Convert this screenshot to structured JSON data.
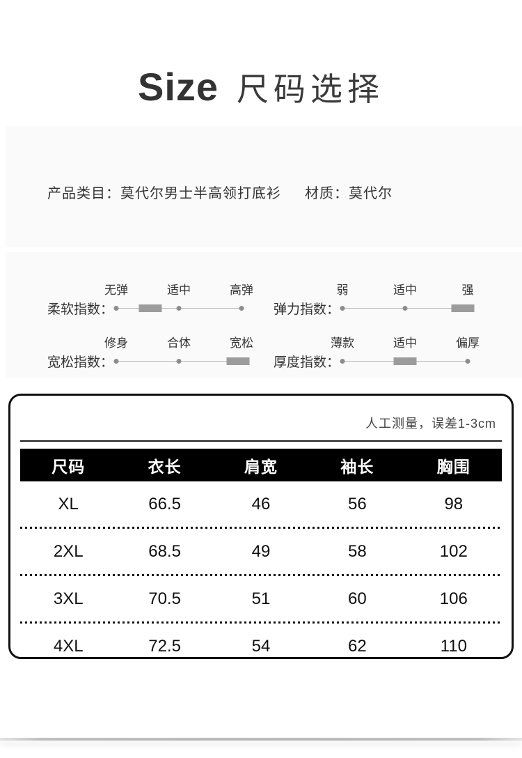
{
  "page": {
    "title_en": "Size",
    "title_zh": "尺码选择"
  },
  "product": {
    "category_label": "产品类目：",
    "category_value": "莫代尔男士半高领打底衫",
    "material_label": "材质：",
    "material_value": "莫代尔"
  },
  "indices": {
    "items": [
      {
        "name": "柔软指数：",
        "stops": [
          "无弹",
          "适中",
          "高弹"
        ],
        "dots": [
          0,
          50,
          100
        ],
        "handle_pct": 27
      },
      {
        "name": "弹力指数：",
        "stops": [
          "弱",
          "适中",
          "强"
        ],
        "dots": [
          0,
          50
        ],
        "handle_pct": 96
      },
      {
        "name": "宽松指数：",
        "stops": [
          "修身",
          "合体",
          "宽松"
        ],
        "dots": [
          0,
          50
        ],
        "handle_pct": 97
      },
      {
        "name": "厚度指数：",
        "stops": [
          "薄款",
          "适中",
          "偏厚"
        ],
        "dots": [
          0,
          100
        ],
        "handle_pct": 50
      }
    ]
  },
  "size_table": {
    "note": "人工测量，误差1-3cm",
    "headers": [
      "尺码",
      "衣长",
      "肩宽",
      "袖长",
      "胸围"
    ],
    "rows": [
      [
        "XL",
        "66.5",
        "46",
        "56",
        "98"
      ],
      [
        "2XL",
        "68.5",
        "49",
        "58",
        "102"
      ],
      [
        "3XL",
        "70.5",
        "51",
        "60",
        "106"
      ],
      [
        "4XL",
        "72.5",
        "54",
        "62",
        "110"
      ]
    ]
  },
  "colors": {
    "panel_bg": "#fafafa",
    "header_bg": "#000000",
    "header_text": "#ffffff",
    "slider_gray": "#9c9c9c",
    "border_black": "#101010"
  }
}
